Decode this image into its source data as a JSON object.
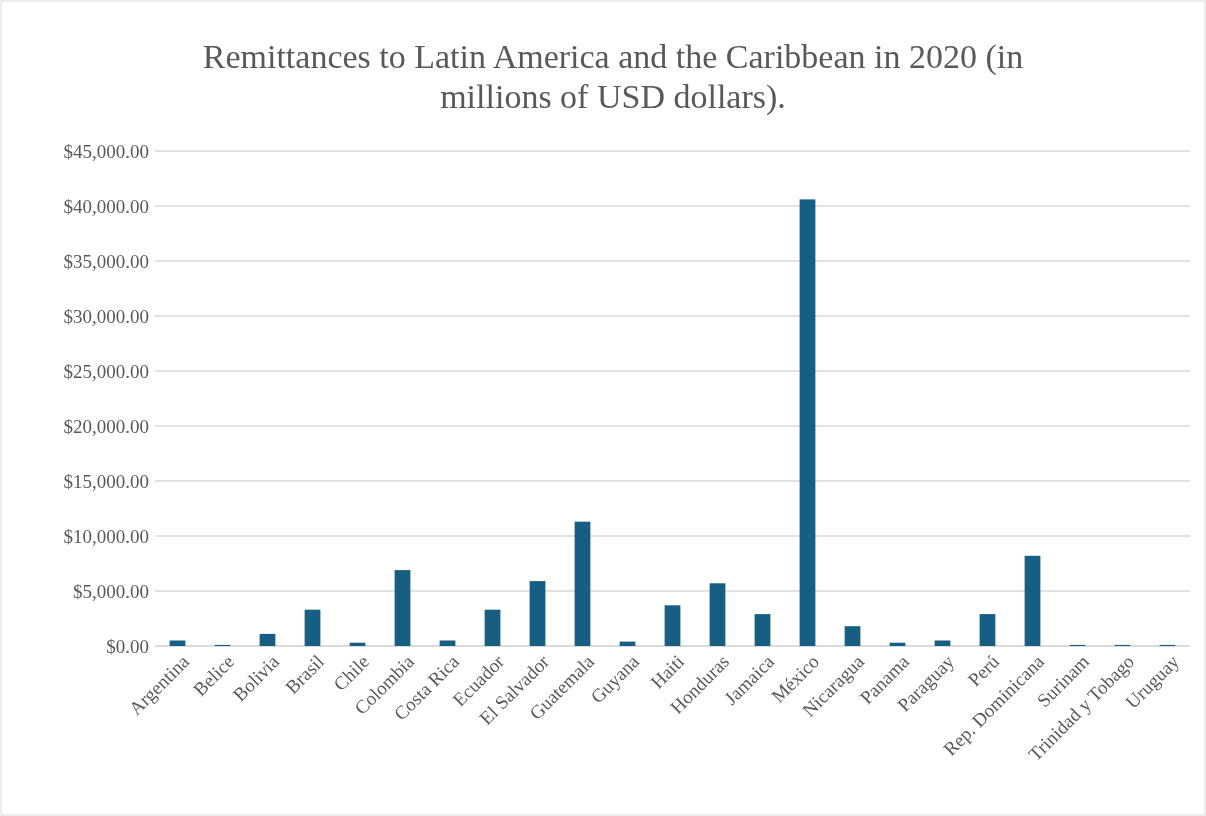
{
  "chart_data": {
    "type": "bar",
    "title": "Remittances to Latin America and the Caribbean in 2020 (in millions of USD dollars).",
    "categories": [
      "Argentina",
      "Belice",
      "Bolivia",
      "Brasil",
      "Chile",
      "Colombia",
      "Costa Rica",
      "Ecuador",
      "El Salvador",
      "Guatemala",
      "Guyana",
      "Haiti",
      "Honduras",
      "Jamaica",
      "México",
      "Nicaragua",
      "Panama",
      "Paraguay",
      "Perú",
      "Rep. Dominicana",
      "Surinam",
      "Trinidad y Tobago",
      "Uruguay"
    ],
    "values": [
      500,
      100,
      1100,
      3300,
      300,
      6900,
      500,
      3300,
      5900,
      11300,
      400,
      3700,
      5700,
      2900,
      40600,
      1800,
      300,
      500,
      2900,
      8200,
      100,
      100,
      100
    ],
    "color": "#175f82",
    "ylim": [
      0,
      45000
    ],
    "yticks": [
      {
        "value": 0,
        "label": "$0.00"
      },
      {
        "value": 5000,
        "label": "$5,000.00"
      },
      {
        "value": 10000,
        "label": "$10,000.00"
      },
      {
        "value": 15000,
        "label": "$15,000.00"
      },
      {
        "value": 20000,
        "label": "$20,000.00"
      },
      {
        "value": 25000,
        "label": "$25,000.00"
      },
      {
        "value": 30000,
        "label": "$30,000.00"
      },
      {
        "value": 35000,
        "label": "$35,000.00"
      },
      {
        "value": 40000,
        "label": "$40,000.00"
      },
      {
        "value": 45000,
        "label": "$45,000.00"
      }
    ],
    "grid": "y"
  }
}
